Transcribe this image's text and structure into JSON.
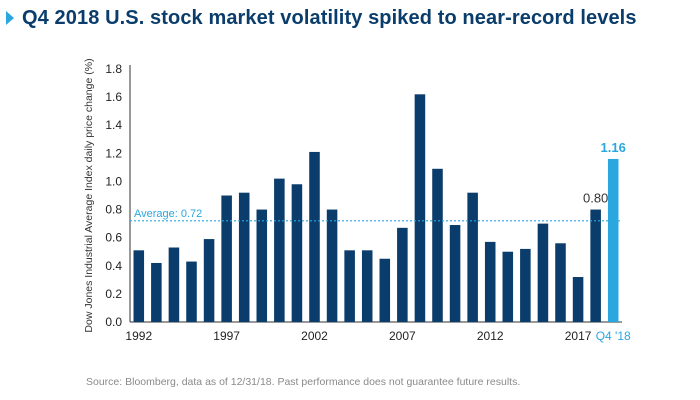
{
  "title": "Q4 2018 U.S. stock market volatility spiked to near-record levels",
  "source": "Source: Bloomberg, data as of 12/31/18. Past performance does not guarantee future results.",
  "colors": {
    "accent": "#2aa7df",
    "bar": "#0a3d6b",
    "title": "#0a3d6b",
    "average_line": "#2aa7df"
  },
  "chart_data": {
    "type": "bar",
    "ylabel": "Dow Jones Industrial Average Index daily price change (%)",
    "xlabel": "",
    "ylim": [
      0,
      1.8
    ],
    "yticks": [
      "0.0",
      "0.2",
      "0.4",
      "0.6",
      "0.8",
      "1.0",
      "1.2",
      "1.4",
      "1.6",
      "1.8"
    ],
    "categories": [
      "1992",
      "1993",
      "1994",
      "1995",
      "1996",
      "1997",
      "1998",
      "1999",
      "2000",
      "2001",
      "2002",
      "2003",
      "2004",
      "2005",
      "2006",
      "2007",
      "2008",
      "2009",
      "2010",
      "2011",
      "2012",
      "2013",
      "2014",
      "2015",
      "2016",
      "2017",
      "2018",
      "Q4 '18"
    ],
    "values": [
      0.51,
      0.42,
      0.53,
      0.43,
      0.59,
      0.9,
      0.92,
      0.8,
      1.02,
      0.98,
      1.21,
      0.8,
      0.51,
      0.51,
      0.45,
      0.67,
      1.62,
      1.09,
      0.69,
      0.92,
      0.57,
      0.5,
      0.52,
      0.7,
      0.56,
      0.32,
      0.8,
      1.16
    ],
    "xtick_labels": [
      {
        "index": 0,
        "label": "1992"
      },
      {
        "index": 5,
        "label": "1997"
      },
      {
        "index": 10,
        "label": "2002"
      },
      {
        "index": 15,
        "label": "2007"
      },
      {
        "index": 20,
        "label": "2012"
      },
      {
        "index": 25,
        "label": "2017"
      },
      {
        "index": 27,
        "label": "Q4 '18",
        "highlight": true
      }
    ],
    "data_labels": [
      {
        "index": 26,
        "label": "0.80"
      },
      {
        "index": 27,
        "label": "1.16",
        "highlight": true
      }
    ],
    "highlight_index": 27,
    "average": {
      "value": 0.72,
      "label": "Average: 0.72"
    },
    "grid": false
  }
}
